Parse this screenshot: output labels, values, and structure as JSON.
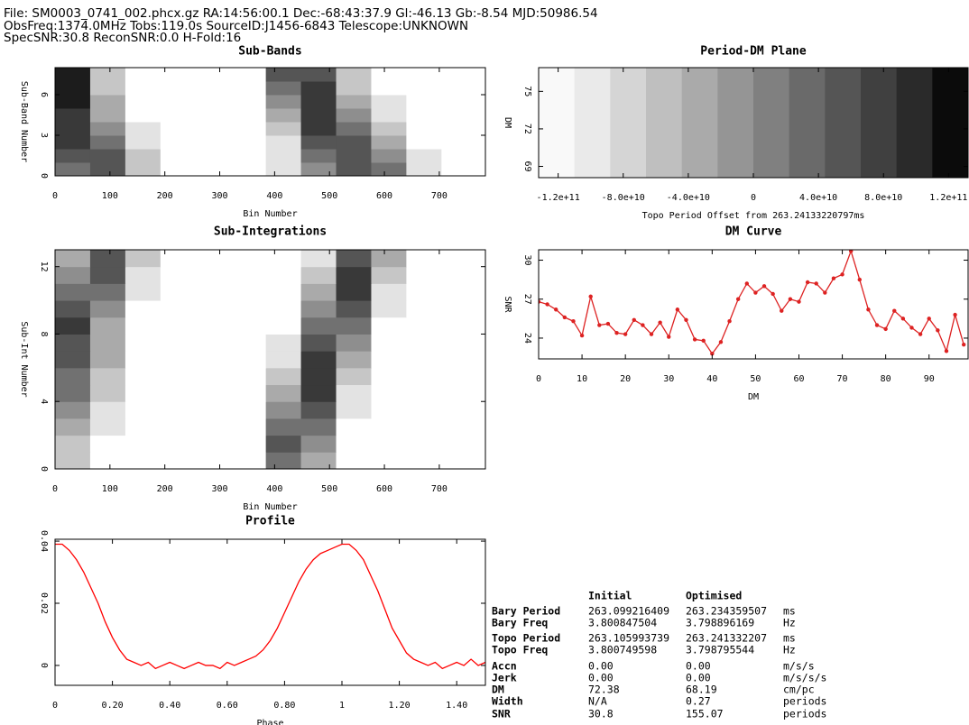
{
  "header_lines": [
    "File: SM0003_0741_002.phcx.gz   RA:14:56:00.1   Dec:-68:43:37.9   Gl:-46.13   Gb:-8.54   MJD:50986.54",
    "ObsFreq:1374.0MHz   Tobs:119.0s   SourceID:J1456-6843   Telescope:UNKNOWN",
    "SpecSNR:30.8   ReconSNR:0.0   H-Fold:16"
  ],
  "chart_data": [
    {
      "type": "heatmap",
      "title": "Sub-Bands",
      "xlabel": "Bin Number",
      "ylabel": "Sub-Band Number",
      "xlim": [
        0,
        784
      ],
      "xticks": [
        0,
        100,
        200,
        300,
        400,
        500,
        600,
        700
      ],
      "ylim": [
        0,
        8
      ],
      "yticks": [
        0,
        3,
        6
      ],
      "xbins": [
        0,
        64,
        128,
        192,
        256,
        320,
        384,
        448,
        512,
        576,
        640,
        704,
        768
      ],
      "ybins": [
        0,
        1,
        2,
        3,
        4,
        5,
        6,
        7,
        8
      ],
      "zlim": [
        0,
        9
      ],
      "z": [
        [
          5,
          6,
          2,
          0,
          0,
          0,
          1,
          4,
          6,
          5,
          1,
          0
        ],
        [
          6,
          6,
          2,
          0,
          0,
          0,
          1,
          5,
          6,
          4,
          1,
          0
        ],
        [
          7,
          5,
          1,
          0,
          0,
          0,
          1,
          6,
          6,
          3,
          0,
          0
        ],
        [
          7,
          4,
          1,
          0,
          0,
          0,
          2,
          7,
          5,
          2,
          0,
          0
        ],
        [
          7,
          3,
          0,
          0,
          0,
          0,
          3,
          7,
          4,
          1,
          0,
          0
        ],
        [
          8,
          3,
          0,
          0,
          0,
          0,
          4,
          7,
          3,
          1,
          0,
          0
        ],
        [
          8,
          2,
          0,
          0,
          0,
          0,
          5,
          7,
          2,
          0,
          0,
          0
        ],
        [
          8,
          2,
          0,
          0,
          0,
          0,
          6,
          6,
          2,
          0,
          0,
          0
        ]
      ]
    },
    {
      "type": "heatmap",
      "title": "Period-DM Plane",
      "xlabel": "Topo Period Offset from 263.24133220797ms",
      "ylabel": "DM",
      "xlim": [
        -132000000000.0,
        132000000000.0
      ],
      "xticks": [
        {
          "value": -120000000000.0,
          "label": "-1.2e+11"
        },
        {
          "value": -80000000000.0,
          "label": "-8.0e+10"
        },
        {
          "value": -40000000000.0,
          "label": "-4.0e+10"
        },
        0,
        {
          "value": 40000000000.0,
          "label": "4.0e+10"
        },
        {
          "value": 80000000000.0,
          "label": "8.0e+10"
        },
        {
          "value": 120000000000.0,
          "label": "1.2e+11"
        }
      ],
      "ylim": [
        68.1,
        76.9
      ],
      "yticks": [
        69,
        72,
        75
      ],
      "xbins": [
        -132000000000.0,
        -110000000000.0,
        -88000000000.0,
        -66000000000.0,
        -44000000000.0,
        -22000000000.0,
        0,
        22000000000.0,
        44000000000.0,
        66000000000.0,
        88000000000.0,
        110000000000.0,
        132000000000.0
      ],
      "ybins": [
        68.1,
        76.9
      ],
      "zlim": [
        0,
        12
      ],
      "z": [
        [
          0.3,
          1,
          2,
          3,
          4,
          5,
          6,
          7,
          8,
          9,
          10,
          11.5
        ]
      ]
    },
    {
      "type": "heatmap",
      "title": "Sub-Integrations",
      "xlabel": "Bin Number",
      "ylabel": "Sub-Int Number",
      "xlim": [
        0,
        784
      ],
      "xticks": [
        0,
        100,
        200,
        300,
        400,
        500,
        600,
        700
      ],
      "ylim": [
        0,
        13
      ],
      "yticks": [
        0,
        4,
        8,
        12
      ],
      "xbins": [
        0,
        64,
        128,
        192,
        256,
        320,
        384,
        448,
        512,
        576,
        640,
        704,
        768
      ],
      "ybins": [
        0,
        1,
        2,
        3,
        4,
        5,
        6,
        7,
        8,
        9,
        10,
        11,
        12,
        13
      ],
      "zlim": [
        0,
        9
      ],
      "z": [
        [
          2,
          0,
          0,
          0,
          0,
          0,
          5,
          3,
          0,
          0,
          0,
          0
        ],
        [
          2,
          0,
          0,
          0,
          0,
          0,
          6,
          4,
          0,
          0,
          0,
          0
        ],
        [
          3,
          1,
          0,
          0,
          0,
          0,
          5,
          5,
          0,
          0,
          0,
          0
        ],
        [
          4,
          1,
          0,
          0,
          0,
          0,
          4,
          6,
          1,
          0,
          0,
          0
        ],
        [
          5,
          2,
          0,
          0,
          0,
          0,
          3,
          7,
          1,
          0,
          0,
          0
        ],
        [
          5,
          2,
          0,
          0,
          0,
          0,
          2,
          7,
          2,
          0,
          0,
          0
        ],
        [
          6,
          3,
          0,
          0,
          0,
          0,
          1,
          7,
          3,
          0,
          0,
          0
        ],
        [
          6,
          3,
          0,
          0,
          0,
          0,
          1,
          6,
          4,
          0,
          0,
          0
        ],
        [
          7,
          3,
          0,
          0,
          0,
          0,
          0,
          5,
          5,
          0,
          0,
          0
        ],
        [
          6,
          4,
          0,
          0,
          0,
          0,
          0,
          4,
          6,
          1,
          0,
          0
        ],
        [
          5,
          5,
          1,
          0,
          0,
          0,
          0,
          3,
          7,
          1,
          0,
          0
        ],
        [
          4,
          6,
          1,
          0,
          0,
          0,
          0,
          2,
          7,
          2,
          0,
          0
        ],
        [
          3,
          6,
          2,
          0,
          0,
          0,
          0,
          1,
          6,
          3,
          0,
          0
        ]
      ]
    },
    {
      "type": "line",
      "title": "DM Curve",
      "xlabel": "DM",
      "ylabel": "SNR",
      "color": "#dd2222",
      "markers": true,
      "xlim": [
        0,
        99
      ],
      "xticks": [
        0,
        10,
        20,
        30,
        40,
        50,
        60,
        70,
        80,
        90
      ],
      "ylim": [
        22.4,
        30.8
      ],
      "yticks": [
        24,
        27,
        30
      ],
      "x": [
        0,
        2,
        4,
        6,
        8,
        10,
        12,
        14,
        16,
        18,
        20,
        22,
        24,
        26,
        28,
        30,
        32,
        34,
        36,
        38,
        40,
        42,
        44,
        46,
        48,
        50,
        52,
        54,
        56,
        58,
        60,
        62,
        64,
        66,
        68,
        70,
        72,
        74,
        76,
        78,
        80,
        82,
        84,
        86,
        88,
        90,
        92,
        94,
        96,
        98
      ],
      "values": [
        26.8,
        26.6,
        26.2,
        25.6,
        25.3,
        24.2,
        27.2,
        25.0,
        25.1,
        24.4,
        24.3,
        25.4,
        25.0,
        24.3,
        25.2,
        24.1,
        26.2,
        25.4,
        23.9,
        23.8,
        22.8,
        23.7,
        25.3,
        27.0,
        28.2,
        27.5,
        28.0,
        27.4,
        26.1,
        27.0,
        26.8,
        28.3,
        28.2,
        27.5,
        28.6,
        28.9,
        30.7,
        28.5,
        26.2,
        25.0,
        24.7,
        26.1,
        25.5,
        24.8,
        24.3,
        25.5,
        24.6,
        23.0,
        25.8,
        23.5
      ]
    },
    {
      "type": "line",
      "title": "Profile",
      "xlabel": "Phase",
      "color": "#ff0000",
      "markers": false,
      "xlim": [
        0,
        1.5
      ],
      "xticks": [
        0,
        {
          "value": 0.2,
          "label": "0.20"
        },
        {
          "value": 0.4,
          "label": "0.40"
        },
        {
          "value": 0.6,
          "label": "0.60"
        },
        {
          "value": 0.8,
          "label": "0.80"
        },
        {
          "value": 1,
          "label": "1"
        },
        {
          "value": 1.2,
          "label": "1.20"
        },
        {
          "value": 1.4,
          "label": "1.40"
        }
      ],
      "ylim": [
        -0.0064,
        0.0406
      ],
      "yticks": [
        0,
        0.02,
        0.04
      ],
      "x": [
        0,
        0.025,
        0.05,
        0.075,
        0.1,
        0.125,
        0.15,
        0.175,
        0.2,
        0.225,
        0.25,
        0.275,
        0.3,
        0.325,
        0.35,
        0.375,
        0.4,
        0.425,
        0.45,
        0.475,
        0.5,
        0.525,
        0.55,
        0.575,
        0.6,
        0.625,
        0.65,
        0.675,
        0.7,
        0.725,
        0.75,
        0.775,
        0.8,
        0.825,
        0.85,
        0.875,
        0.9,
        0.925,
        0.95,
        0.975,
        1,
        1.025,
        1.05,
        1.075,
        1.1,
        1.125,
        1.15,
        1.175,
        1.2,
        1.225,
        1.25,
        1.275,
        1.3,
        1.325,
        1.35,
        1.375,
        1.4,
        1.425,
        1.45,
        1.475,
        1.5
      ],
      "values": [
        0.039,
        0.039,
        0.037,
        0.034,
        0.03,
        0.025,
        0.02,
        0.014,
        0.009,
        0.005,
        0.002,
        0.001,
        0,
        0.001,
        -0.001,
        0,
        0.001,
        0,
        -0.001,
        0,
        0.001,
        0,
        0,
        -0.001,
        0.001,
        0,
        0.001,
        0.002,
        0.003,
        0.005,
        0.008,
        0.012,
        0.017,
        0.022,
        0.027,
        0.031,
        0.034,
        0.036,
        0.037,
        0.038,
        0.039,
        0.039,
        0.037,
        0.034,
        0.029,
        0.024,
        0.018,
        0.012,
        0.008,
        0.004,
        0.002,
        0.001,
        0,
        0.001,
        -0.001,
        0,
        0.001,
        0,
        0.002,
        0,
        0.001
      ]
    }
  ],
  "table": {
    "columns": [
      "Initial",
      "Optimised"
    ],
    "rows": [
      [
        "Bary Period",
        "263.099216409",
        "263.234359507",
        "ms"
      ],
      [
        "Bary Freq",
        "3.800847504",
        "3.798896169",
        "Hz"
      ],
      [
        "Topo Period",
        "263.105993739",
        "263.241332207",
        "ms"
      ],
      [
        "Topo Freq",
        "3.800749598",
        "3.798795544",
        "Hz"
      ],
      [
        "Accn",
        "0.00",
        "0.00",
        "m/s/s"
      ],
      [
        "Jerk",
        "0.00",
        "0.00",
        "m/s/s/s"
      ],
      [
        "DM",
        "72.38",
        "68.19",
        "cm/pc"
      ],
      [
        "Width",
        "N/A",
        "0.27",
        "periods"
      ],
      [
        "SNR",
        "30.8",
        "155.07",
        "periods"
      ]
    ]
  }
}
